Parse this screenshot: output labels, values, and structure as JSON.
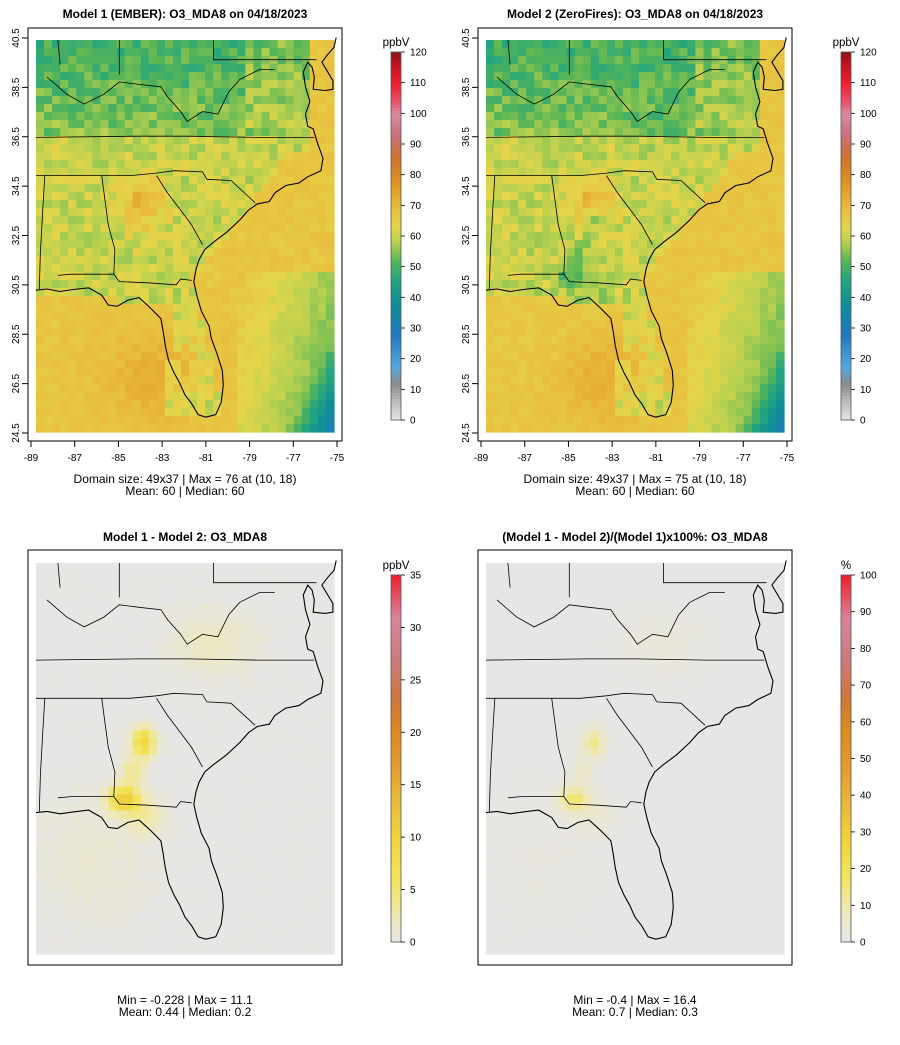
{
  "chart_data": [
    {
      "type": "heatmap",
      "title": "Model 1 (EMBER): O3_MDA8 on 04/18/2023",
      "field": "model1",
      "grid": [
        49,
        37
      ],
      "xticks": [
        "-89",
        "-87",
        "-85",
        "-83",
        "-81",
        "-79",
        "-77",
        "-75"
      ],
      "yticks": [
        "24.5",
        "26.5",
        "28.5",
        "30.5",
        "32.5",
        "34.5",
        "36.5",
        "38.5",
        "40.5"
      ],
      "lon_range": [
        -89,
        -75
      ],
      "lat_range": [
        24.5,
        40.5
      ],
      "colorbar": {
        "unit": "ppbV",
        "range": [
          0,
          120
        ],
        "ticks": [
          "0",
          "10",
          "20",
          "30",
          "40",
          "50",
          "60",
          "70",
          "80",
          "90",
          "100",
          "110",
          "120"
        ]
      },
      "info_line1": "Domain size: 49x37 | Max = 76 at (10, 18)",
      "info_line2": "Mean: 60 |  Median: 60"
    },
    {
      "type": "heatmap",
      "title": "Model 2 (ZeroFires): O3_MDA8 on 04/18/2023",
      "field": "model2",
      "grid": [
        49,
        37
      ],
      "xticks": [
        "-89",
        "-87",
        "-85",
        "-83",
        "-81",
        "-79",
        "-77",
        "-75"
      ],
      "yticks": [
        "24.5",
        "26.5",
        "28.5",
        "30.5",
        "32.5",
        "34.5",
        "36.5",
        "38.5",
        "40.5"
      ],
      "lon_range": [
        -89,
        -75
      ],
      "lat_range": [
        24.5,
        40.5
      ],
      "colorbar": {
        "unit": "ppbV",
        "range": [
          0,
          120
        ],
        "ticks": [
          "0",
          "10",
          "20",
          "30",
          "40",
          "50",
          "60",
          "70",
          "80",
          "90",
          "100",
          "110",
          "120"
        ]
      },
      "info_line1": "Domain size: 49x37 | Max = 75 at (10, 18)",
      "info_line2": "Mean: 60 |  Median: 60"
    },
    {
      "type": "heatmap",
      "title": "Model 1 - Model 2: O3_MDA8",
      "field": "diff",
      "grid": [
        49,
        37
      ],
      "xticks": [],
      "yticks": [],
      "colorbar": {
        "unit": "ppbV",
        "range": [
          0,
          35
        ],
        "ticks": [
          "0",
          "5",
          "10",
          "15",
          "20",
          "25",
          "30",
          "35"
        ]
      },
      "info_line1": "Min = -0.228 | Max = 11.1",
      "info_line2": "Mean: 0.44 |  Median: 0.2"
    },
    {
      "type": "heatmap",
      "title": "(Model 1 - Model 2)/(Model 1)x100%: O3_MDA8",
      "field": "pct",
      "grid": [
        49,
        37
      ],
      "xticks": [],
      "yticks": [],
      "colorbar": {
        "unit": "%",
        "range": [
          0,
          100
        ],
        "ticks": [
          "0",
          "10",
          "20",
          "30",
          "40",
          "50",
          "60",
          "70",
          "80",
          "90",
          "100"
        ]
      },
      "info_line1": "Min = -0.4 | Max = 16.4",
      "info_line2": "Mean: 0.7 |  Median: 0.3"
    }
  ]
}
